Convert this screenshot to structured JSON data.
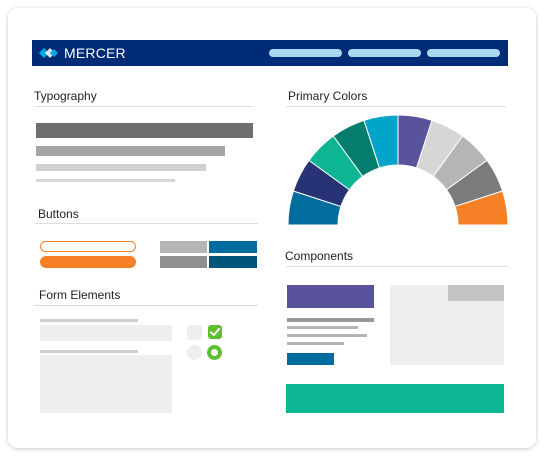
{
  "brand": {
    "name": "MERCER",
    "logo_icon": "mercer-logo-icon"
  },
  "sections": {
    "typography": "Typography",
    "buttons": "Buttons",
    "form_elements": "Form Elements",
    "primary_colors": "Primary Colors",
    "components": "Components"
  },
  "colors": {
    "navy": "#002c77",
    "orange": "#f58025",
    "teal_blue": "#006d9e",
    "green": "#0db592",
    "purple": "#59539b",
    "check_green": "#5fbf2f"
  },
  "palette": [
    "#006d9e",
    "#283375",
    "#0db592",
    "#037e6e",
    "#00a5c9",
    "#59539b",
    "#d6d6d6",
    "#b5b5b5",
    "#7b7b7b",
    "#f58025"
  ]
}
